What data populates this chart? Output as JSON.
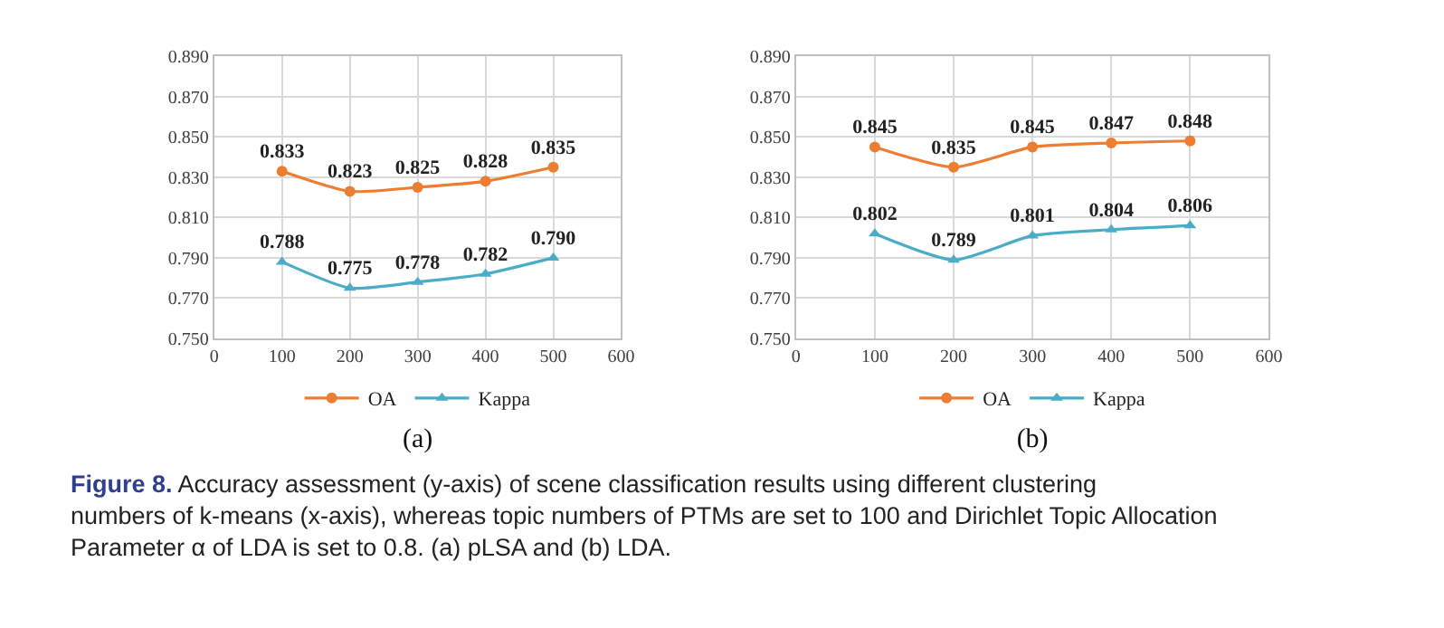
{
  "chart_data": [
    {
      "type": "line",
      "x": [
        100,
        200,
        300,
        400,
        500
      ],
      "xlabel": "(a)",
      "series": [
        {
          "name": "OA",
          "color": "#ed7d31",
          "marker": "circle",
          "values": [
            0.833,
            0.823,
            0.825,
            0.828,
            0.835
          ],
          "value_labels": [
            "0.833",
            "0.823",
            "0.825",
            "0.828",
            "0.835"
          ]
        },
        {
          "name": "Kappa",
          "color": "#4bacc6",
          "marker": "triangle",
          "values": [
            0.788,
            0.775,
            0.778,
            0.782,
            0.79
          ],
          "value_labels": [
            "0.788",
            "0.775",
            "0.778",
            "0.782",
            "0.790"
          ]
        }
      ],
      "xlim": [
        0,
        600
      ],
      "xticks": [
        0,
        100,
        200,
        300,
        400,
        500,
        600
      ],
      "ylim": [
        0.75,
        0.89
      ],
      "yticks": [
        {
          "value": 0.75,
          "label": "0.750"
        },
        {
          "value": 0.77,
          "label": "0.770"
        },
        {
          "value": 0.79,
          "label": "0.790"
        },
        {
          "value": 0.81,
          "label": "0.810"
        },
        {
          "value": 0.83,
          "label": "0.830"
        },
        {
          "value": 0.85,
          "label": "0.850"
        },
        {
          "value": 0.87,
          "label": "0.870"
        },
        {
          "value": 0.89,
          "label": "0.890"
        }
      ],
      "grid": true,
      "legend": "bottom",
      "line_style": "solid",
      "annotations": [
        "Figure 8.",
        "Accuracy assessment (y-axis) of scene classification results using different clustering numbers of k-means (x-axis), whereas topic numbers of PTMs are set to 100 and Dirichlet Topic Allocation Parameter α of LDA is set to 0.8. (a) pLSA and (b) LDA."
      ]
    },
    {
      "type": "line",
      "x": [
        100,
        200,
        300,
        400,
        500
      ],
      "xlabel": "(b)",
      "series": [
        {
          "name": "OA",
          "color": "#ed7d31",
          "marker": "circle",
          "values": [
            0.845,
            0.835,
            0.845,
            0.847,
            0.848
          ],
          "value_labels": [
            "0.845",
            "0.835",
            "0.845",
            "0.847",
            "0.848"
          ]
        },
        {
          "name": "Kappa",
          "color": "#4bacc6",
          "marker": "triangle",
          "values": [
            0.802,
            0.789,
            0.801,
            0.804,
            0.806
          ],
          "value_labels": [
            "0.802",
            "0.789",
            "0.801",
            "0.804",
            "0.806"
          ]
        }
      ],
      "xlim": [
        0,
        600
      ],
      "xticks": [
        0,
        100,
        200,
        300,
        400,
        500,
        600
      ],
      "ylim": [
        0.75,
        0.89
      ],
      "yticks": [
        {
          "value": 0.75,
          "label": "0.750"
        },
        {
          "value": 0.77,
          "label": "0.770"
        },
        {
          "value": 0.79,
          "label": "0.790"
        },
        {
          "value": 0.81,
          "label": "0.810"
        },
        {
          "value": 0.83,
          "label": "0.830"
        },
        {
          "value": 0.85,
          "label": "0.850"
        },
        {
          "value": 0.87,
          "label": "0.870"
        },
        {
          "value": 0.89,
          "label": "0.890"
        }
      ],
      "grid": true,
      "legend": "bottom",
      "line_style": "solid"
    }
  ]
}
